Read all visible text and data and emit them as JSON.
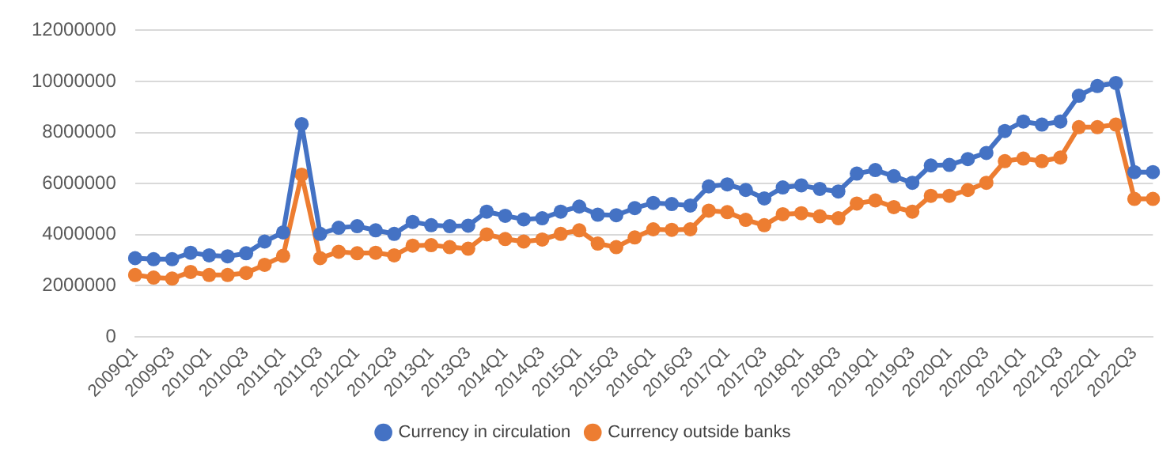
{
  "chart_data": {
    "type": "line",
    "categories": [
      "2009Q1",
      null,
      "2009Q3",
      null,
      "2010Q1",
      null,
      "2010Q3",
      null,
      "2011Q1",
      null,
      "2011Q3",
      null,
      "2012Q1",
      null,
      "2012Q3",
      null,
      "2013Q1",
      null,
      "2013Q3",
      null,
      "2014Q1",
      null,
      "2014Q3",
      null,
      "2015Q1",
      null,
      "2015Q3",
      null,
      "2016Q1",
      null,
      "2016Q3",
      null,
      "2017Q1",
      null,
      "2017Q3",
      null,
      "2018Q1",
      null,
      "2018Q3",
      null,
      "2019Q1",
      null,
      "2019Q3",
      null,
      "2020Q1",
      null,
      "2020Q3",
      null,
      "2021Q1",
      null,
      "2021Q3",
      null,
      "2022Q1",
      null,
      "2022Q3",
      null
    ],
    "series": [
      {
        "name": "Currency in circulation",
        "color": "#4472c4",
        "values": [
          3080000,
          3040000,
          3040000,
          3290000,
          3190000,
          3150000,
          3270000,
          3730000,
          4090000,
          8330000,
          4030000,
          4270000,
          4330000,
          4170000,
          4030000,
          4500000,
          4370000,
          4330000,
          4350000,
          4900000,
          4740000,
          4600000,
          4640000,
          4900000,
          5100000,
          4780000,
          4760000,
          5040000,
          5240000,
          5200000,
          5140000,
          5890000,
          5970000,
          5750000,
          5420000,
          5850000,
          5930000,
          5790000,
          5690000,
          6390000,
          6530000,
          6290000,
          6030000,
          6710000,
          6730000,
          6960000,
          7200000,
          8060000,
          8430000,
          8310000,
          8430000,
          9440000,
          9820000,
          9940000,
          6450000,
          6450000
        ]
      },
      {
        "name": "Currency outside banks",
        "color": "#ed7d31",
        "values": [
          2420000,
          2320000,
          2280000,
          2540000,
          2420000,
          2420000,
          2500000,
          2820000,
          3170000,
          6350000,
          3080000,
          3330000,
          3270000,
          3290000,
          3190000,
          3570000,
          3590000,
          3510000,
          3450000,
          4010000,
          3830000,
          3730000,
          3810000,
          4030000,
          4170000,
          3650000,
          3510000,
          3890000,
          4210000,
          4190000,
          4210000,
          4940000,
          4880000,
          4580000,
          4370000,
          4800000,
          4840000,
          4720000,
          4640000,
          5220000,
          5340000,
          5080000,
          4900000,
          5520000,
          5520000,
          5750000,
          6030000,
          6880000,
          6980000,
          6880000,
          7020000,
          8210000,
          8210000,
          8310000,
          5400000,
          5400000
        ]
      }
    ],
    "ylim": [
      0,
      12000000
    ],
    "yticks": [
      0,
      2000000,
      4000000,
      6000000,
      8000000,
      10000000,
      12000000
    ],
    "grid": "y",
    "legend": "bottom",
    "marker": "circle",
    "line_style": "solid"
  }
}
